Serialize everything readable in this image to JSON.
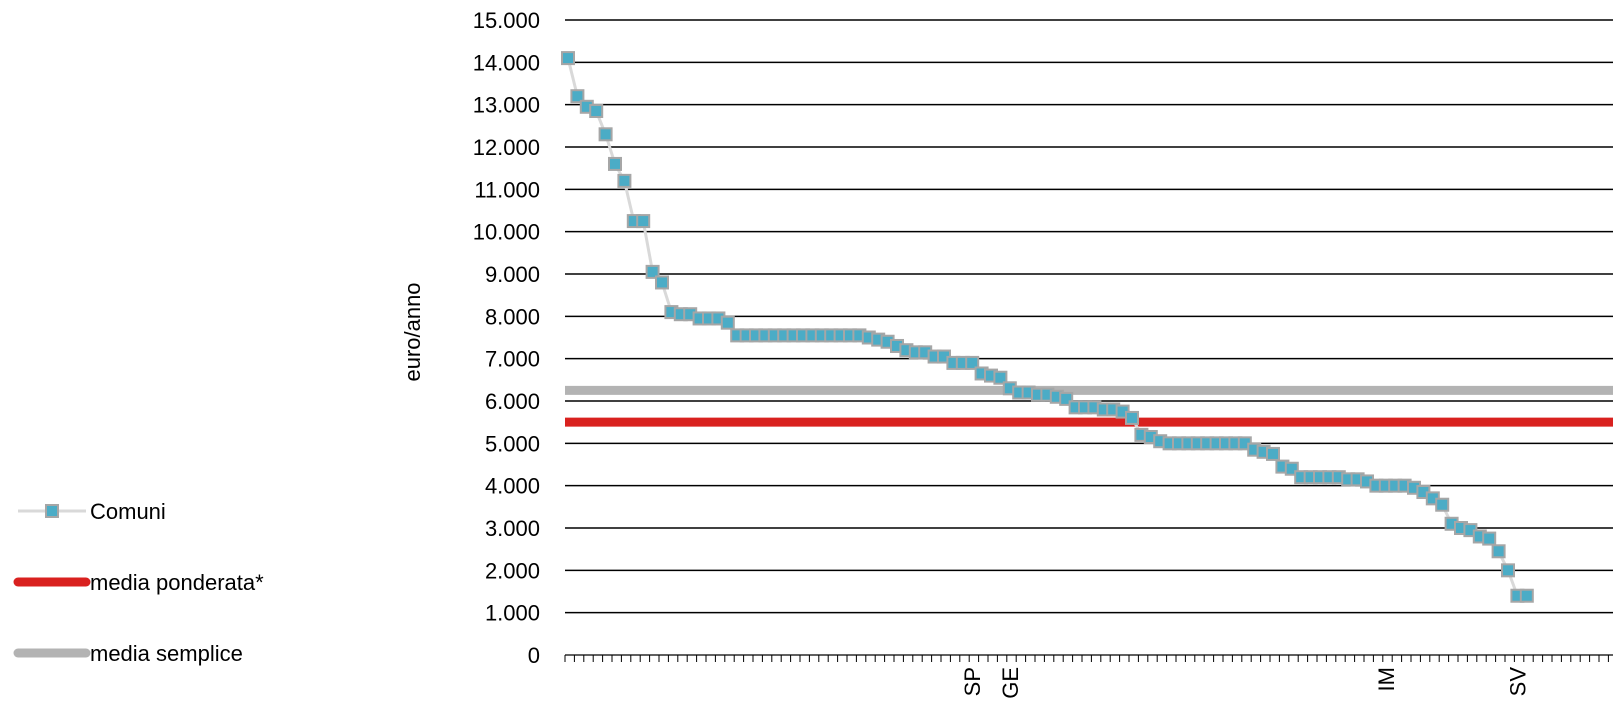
{
  "chart_data": {
    "type": "line",
    "ylabel": "euro/anno",
    "ylim": [
      0,
      15000
    ],
    "yticks": [
      "0",
      "1.000",
      "2.000",
      "3.000",
      "4.000",
      "5.000",
      "6.000",
      "7.000",
      "8.000",
      "9.000",
      "10.000",
      "11.000",
      "12.000",
      "13.000",
      "14.000",
      "15.000"
    ],
    "grid": true,
    "legend_position": "left",
    "category_labels": [
      {
        "index": 43,
        "label": "SP"
      },
      {
        "index": 47,
        "label": "GE"
      },
      {
        "index": 87,
        "label": "IM"
      },
      {
        "index": 101,
        "label": "SV"
      }
    ],
    "series": [
      {
        "name": "Comuni",
        "kind": "markers",
        "line_color": "#d9d9d9",
        "marker_color": "#4bacc6",
        "marker_edge": "#a6a6a6",
        "values": [
          14100,
          13200,
          12950,
          12850,
          12300,
          11600,
          11200,
          10250,
          10250,
          9050,
          8800,
          8100,
          8050,
          8050,
          7950,
          7950,
          7950,
          7850,
          7550,
          7550,
          7550,
          7550,
          7550,
          7550,
          7550,
          7550,
          7550,
          7550,
          7550,
          7550,
          7550,
          7550,
          7500,
          7450,
          7400,
          7300,
          7200,
          7150,
          7150,
          7050,
          7050,
          6900,
          6900,
          6900,
          6650,
          6600,
          6550,
          6300,
          6200,
          6200,
          6150,
          6150,
          6100,
          6050,
          5850,
          5850,
          5850,
          5800,
          5800,
          5750,
          5600,
          5200,
          5150,
          5050,
          5000,
          5000,
          5000,
          5000,
          5000,
          5000,
          5000,
          5000,
          5000,
          4850,
          4800,
          4750,
          4450,
          4400,
          4200,
          4200,
          4200,
          4200,
          4200,
          4150,
          4150,
          4100,
          4000,
          4000,
          4000,
          4000,
          3950,
          3850,
          3700,
          3550,
          3100,
          3000,
          2950,
          2800,
          2750,
          2450,
          2000,
          1400,
          1400
        ]
      },
      {
        "name": "media ponderata*",
        "kind": "hline",
        "value": 5500,
        "color": "#d9211f"
      },
      {
        "name": "media semplice",
        "kind": "hline",
        "value": 6250,
        "color": "#b3b3b3"
      }
    ]
  }
}
